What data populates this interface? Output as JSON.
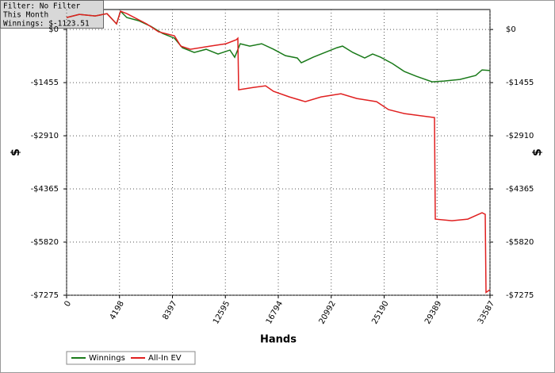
{
  "chart_data": {
    "type": "line",
    "annotations": [
      "Filter: No Filter",
      "This Month",
      "Winnings: $-1123.51"
    ],
    "xlabel": "Hands",
    "ylabel": "$",
    "xlim": [
      0,
      33587
    ],
    "xticks": [
      0,
      4198,
      8397,
      12595,
      16794,
      20992,
      25190,
      29389,
      33587
    ],
    "ylim": [
      -7275,
      546
    ],
    "yticks": [
      {
        "value": 0,
        "label": "$0"
      },
      {
        "value": -1455,
        "label": "-$1455"
      },
      {
        "value": -2910,
        "label": "-$2910"
      },
      {
        "value": -4365,
        "label": "-$4365"
      },
      {
        "value": -5820,
        "label": "-$5820"
      },
      {
        "value": -7275,
        "label": "-$7275"
      }
    ],
    "grid": true,
    "series": [
      {
        "name": "Winnings",
        "color": "#1a7a1a",
        "x": [
          0,
          1006,
          2264,
          3208,
          3963,
          4277,
          4780,
          5724,
          6667,
          7611,
          8554,
          9183,
          10127,
          11070,
          12014,
          12957,
          13335,
          13775,
          14530,
          15473,
          16417,
          17360,
          18304,
          18619,
          19562,
          20506,
          21449,
          21890,
          22708,
          23651,
          24280,
          24909,
          25853,
          26796,
          27740,
          28998,
          29941,
          31199,
          32457,
          32960,
          33587
        ],
        "values": [
          326,
          413,
          369,
          434,
          152,
          500,
          326,
          239,
          87,
          -109,
          -239,
          -500,
          -630,
          -543,
          -673,
          -565,
          -760,
          -391,
          -456,
          -391,
          -543,
          -717,
          -782,
          -912,
          -760,
          -630,
          -500,
          -456,
          -630,
          -782,
          -673,
          -760,
          -934,
          -1151,
          -1281,
          -1434,
          -1412,
          -1368,
          -1260,
          -1108,
          -1124
        ]
      },
      {
        "name": "All-In EV",
        "color": "#e02020",
        "x": [
          0,
          1006,
          2264,
          3208,
          3963,
          4277,
          4780,
          6353,
          7296,
          8554,
          9057,
          9812,
          11384,
          12642,
          13460,
          13586,
          13649,
          14844,
          15788,
          16417,
          17675,
          18933,
          20191,
          21764,
          23022,
          24594,
          25538,
          26796,
          29186,
          29249,
          30570,
          31828,
          32960,
          33211,
          33274,
          33587
        ],
        "values": [
          326,
          413,
          369,
          434,
          152,
          500,
          434,
          152,
          -65,
          -174,
          -456,
          -543,
          -456,
          -391,
          -282,
          -239,
          -1651,
          -1586,
          -1542,
          -1694,
          -1846,
          -1977,
          -1846,
          -1759,
          -1890,
          -1977,
          -2194,
          -2302,
          -2411,
          -5191,
          -5235,
          -5191,
          -5017,
          -5061,
          -7200,
          -7124
        ]
      }
    ]
  }
}
